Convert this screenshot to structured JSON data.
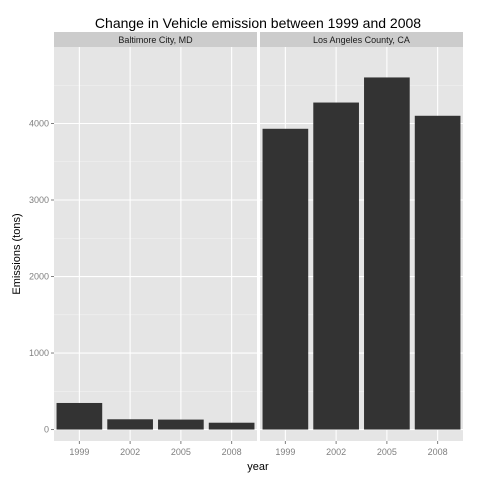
{
  "chart_data": {
    "type": "bar",
    "title": "Change in Vehicle emission between 1999 and 2008",
    "xlabel": "year",
    "ylabel": "Emissions (tons)",
    "categories": [
      "1999",
      "2002",
      "2005",
      "2008"
    ],
    "ylim": [
      -150,
      5000
    ],
    "yticks": [
      0,
      1000,
      2000,
      3000,
      4000
    ],
    "ytick_labels": [
      "0",
      "1000",
      "2000",
      "3000",
      "4000"
    ],
    "grid": true,
    "bar_color": "#333333",
    "panel_background": "#e5e5e5",
    "strip_background": "#cccccc",
    "facets": [
      {
        "label": "Baltimore City, MD",
        "values": [
          347,
          134,
          130,
          89
        ]
      },
      {
        "label": "Los Angeles County, CA",
        "values": [
          3931,
          4274,
          4602,
          4101
        ]
      }
    ]
  }
}
